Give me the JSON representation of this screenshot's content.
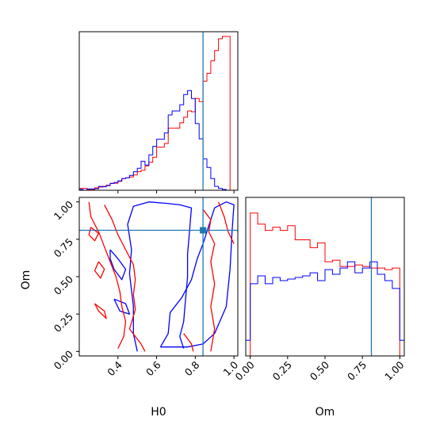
{
  "chart_data": {
    "type": "corner",
    "parameters": [
      "H0",
      "Om"
    ],
    "truth": {
      "H0": 0.84,
      "Om": 0.81
    },
    "colors": {
      "red": "#ff0000",
      "blue": "#0000ff",
      "truth": "#1f77b4"
    },
    "panels": [
      {
        "id": "h0-marginal",
        "type": "histogram",
        "xlim": [
          0.2,
          1.02
        ],
        "bin_edges": [
          0.2,
          0.22,
          0.24,
          0.26,
          0.28,
          0.3,
          0.32,
          0.34,
          0.36,
          0.38,
          0.4,
          0.42,
          0.44,
          0.46,
          0.48,
          0.5,
          0.52,
          0.54,
          0.56,
          0.58,
          0.6,
          0.62,
          0.64,
          0.66,
          0.68,
          0.7,
          0.72,
          0.74,
          0.76,
          0.78,
          0.8,
          0.82,
          0.84,
          0.86,
          0.88,
          0.9,
          0.92,
          0.94,
          0.96,
          0.98,
          1.0
        ],
        "series": [
          {
            "color": "red",
            "values": [
              0.012,
              0.012,
              0.005,
              0.005,
              0.015,
              0.02,
              0.025,
              0.033,
              0.045,
              0.045,
              0.057,
              0.075,
              0.08,
              0.085,
              0.097,
              0.118,
              0.128,
              0.155,
              0.178,
              0.21,
              0.275,
              0.275,
              0.298,
              0.395,
              0.395,
              0.395,
              0.43,
              0.465,
              0.505,
              0.5,
              0.585,
              0.565,
              0.695,
              0.745,
              0.825,
              0.89,
              0.965,
              0.98,
              0.98,
              0.0
            ]
          },
          {
            "color": "blue",
            "values": [
              0.005,
              0.0,
              0.008,
              0.008,
              0.01,
              0.025,
              0.022,
              0.03,
              0.043,
              0.05,
              0.06,
              0.075,
              0.08,
              0.095,
              0.118,
              0.14,
              0.185,
              0.16,
              0.225,
              0.28,
              0.325,
              0.325,
              0.365,
              0.48,
              0.505,
              0.505,
              0.545,
              0.61,
              0.635,
              0.585,
              0.425,
              0.328,
              0.2,
              0.145,
              0.075,
              0.025,
              0.012,
              0.005,
              0.0,
              0.0
            ]
          }
        ],
        "xticks": [
          0.4,
          0.6,
          0.8,
          1.0
        ]
      },
      {
        "id": "om-marginal",
        "type": "histogram",
        "xlim": [
          -0.03,
          1.03
        ],
        "bin_edges": [
          -0.03,
          0.0,
          0.05,
          0.1,
          0.15,
          0.2,
          0.25,
          0.3,
          0.35,
          0.4,
          0.45,
          0.5,
          0.55,
          0.6,
          0.65,
          0.7,
          0.75,
          0.8,
          0.85,
          0.9,
          0.95,
          1.0,
          1.03
        ],
        "series": [
          {
            "color": "red",
            "values": [
              0.0,
              0.91,
              0.84,
              0.8,
              0.82,
              0.8,
              0.83,
              0.74,
              0.74,
              0.69,
              0.72,
              0.6,
              0.61,
              0.57,
              0.57,
              0.58,
              0.57,
              0.56,
              0.56,
              0.55,
              0.56,
              0.0
            ]
          },
          {
            "color": "blue",
            "values": [
              0.1,
              0.46,
              0.51,
              0.46,
              0.5,
              0.48,
              0.49,
              0.5,
              0.51,
              0.53,
              0.48,
              0.55,
              0.52,
              0.56,
              0.6,
              0.53,
              0.56,
              0.6,
              0.52,
              0.48,
              0.43,
              0.1
            ]
          }
        ],
        "xticks": [
          0.0,
          0.25,
          0.5,
          0.75,
          1.0
        ],
        "xtick_labels": [
          "0.00",
          "0.25",
          "0.50",
          "0.75",
          "1.00"
        ],
        "xlabel": "Om"
      },
      {
        "id": "h0-om-joint",
        "type": "contour",
        "xlim": [
          0.2,
          1.02
        ],
        "ylim": [
          -0.03,
          1.03
        ],
        "xticks": [
          0.4,
          0.6,
          0.8,
          1.0
        ],
        "xtick_labels": [
          "0.4",
          "0.6",
          "0.8",
          "1.0"
        ],
        "yticks": [
          0.0,
          0.25,
          0.5,
          0.75,
          1.0
        ],
        "ytick_labels": [
          "0.00",
          "0.25",
          "0.50",
          "0.75",
          "1.00"
        ],
        "xlabel": "H0",
        "ylabel": "Om",
        "contours": [
          {
            "color": "blue",
            "points": [
              [
                0.5,
                0.0
              ],
              [
                0.48,
                0.12
              ],
              [
                0.48,
                0.3
              ],
              [
                0.46,
                0.52
              ],
              [
                0.47,
                0.68
              ],
              [
                0.45,
                0.85
              ],
              [
                0.48,
                0.97
              ],
              [
                0.56,
                1.0
              ],
              [
                0.65,
                0.99
              ],
              [
                0.72,
                0.98
              ],
              [
                0.78,
                0.96
              ],
              [
                0.77,
                0.8
              ],
              [
                0.76,
                0.65
              ],
              [
                0.76,
                0.5
              ],
              [
                0.75,
                0.35
              ],
              [
                0.74,
                0.2
              ],
              [
                0.72,
                0.1
              ],
              [
                0.74,
                0.02
              ]
            ]
          },
          {
            "color": "blue",
            "points": [
              [
                0.62,
                0.03
              ],
              [
                0.66,
                0.12
              ],
              [
                0.67,
                0.26
              ],
              [
                0.73,
                0.36
              ],
              [
                0.78,
                0.48
              ],
              [
                0.81,
                0.62
              ],
              [
                0.84,
                0.72
              ],
              [
                0.9,
                0.96
              ],
              [
                0.96,
                1.0
              ],
              [
                1.0,
                0.98
              ],
              [
                0.99,
                0.8
              ],
              [
                0.98,
                0.55
              ],
              [
                0.96,
                0.3
              ],
              [
                0.9,
                0.12
              ],
              [
                0.84,
                0.05
              ],
              [
                0.76,
                0.03
              ],
              [
                0.7,
                0.03
              ],
              [
                0.62,
                0.03
              ]
            ]
          },
          {
            "color": "blue",
            "points": [
              [
                0.36,
                0.68
              ],
              [
                0.4,
                0.62
              ],
              [
                0.44,
                0.55
              ],
              [
                0.42,
                0.48
              ],
              [
                0.38,
                0.55
              ],
              [
                0.36,
                0.62
              ],
              [
                0.36,
                0.68
              ]
            ]
          },
          {
            "color": "blue",
            "points": [
              [
                0.38,
                0.35
              ],
              [
                0.44,
                0.32
              ],
              [
                0.46,
                0.25
              ],
              [
                0.41,
                0.27
              ],
              [
                0.38,
                0.35
              ]
            ]
          },
          {
            "color": "red",
            "points": [
              [
                0.25,
                1.0
              ],
              [
                0.26,
                0.9
              ],
              [
                0.3,
                0.8
              ],
              [
                0.33,
                0.7
              ],
              [
                0.36,
                0.6
              ],
              [
                0.39,
                0.5
              ],
              [
                0.41,
                0.4
              ],
              [
                0.42,
                0.3
              ],
              [
                0.44,
                0.2
              ],
              [
                0.43,
                0.1
              ],
              [
                0.4,
                0.02
              ]
            ]
          },
          {
            "color": "red",
            "points": [
              [
                0.33,
                0.98
              ],
              [
                0.37,
                0.88
              ],
              [
                0.4,
                0.78
              ],
              [
                0.44,
                0.68
              ],
              [
                0.48,
                0.58
              ],
              [
                0.49,
                0.48
              ],
              [
                0.48,
                0.38
              ],
              [
                0.49,
                0.28
              ],
              [
                0.46,
                0.15
              ],
              [
                0.52,
                0.05
              ],
              [
                0.54,
                0.0
              ]
            ]
          },
          {
            "color": "red",
            "points": [
              [
                0.28,
                0.32
              ],
              [
                0.33,
                0.27
              ],
              [
                0.34,
                0.22
              ],
              [
                0.3,
                0.27
              ],
              [
                0.28,
                0.32
              ]
            ]
          },
          {
            "color": "red",
            "points": [
              [
                0.26,
                0.83
              ],
              [
                0.3,
                0.79
              ],
              [
                0.28,
                0.74
              ],
              [
                0.25,
                0.78
              ],
              [
                0.26,
                0.83
              ]
            ]
          },
          {
            "color": "red",
            "points": [
              [
                0.3,
                0.6
              ],
              [
                0.33,
                0.55
              ],
              [
                0.31,
                0.49
              ],
              [
                0.28,
                0.54
              ],
              [
                0.3,
                0.6
              ]
            ]
          },
          {
            "color": "red",
            "points": [
              [
                0.84,
                0.95
              ],
              [
                0.88,
                0.88
              ],
              [
                0.87,
                0.8
              ],
              [
                0.9,
                0.72
              ],
              [
                0.88,
                0.6
              ],
              [
                0.9,
                0.45
              ],
              [
                0.88,
                0.3
              ],
              [
                0.9,
                0.15
              ],
              [
                0.88,
                0.0
              ]
            ]
          },
          {
            "color": "red",
            "points": [
              [
                0.92,
                1.0
              ],
              [
                0.95,
                0.9
              ],
              [
                0.97,
                0.8
              ],
              [
                1.0,
                0.72
              ]
            ]
          },
          {
            "color": "red",
            "points": [
              [
                0.74,
                0.12
              ],
              [
                0.78,
                0.05
              ],
              [
                0.79,
                0.0
              ]
            ]
          }
        ]
      }
    ]
  }
}
